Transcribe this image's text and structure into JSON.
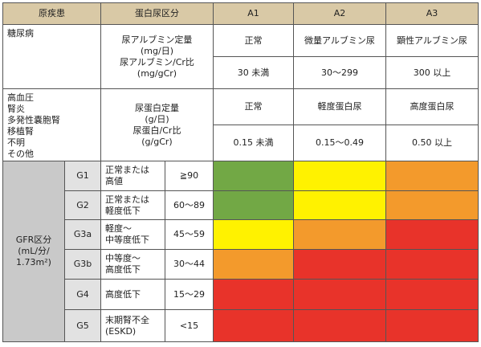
{
  "header": {
    "disease": "原疾患",
    "proteinuria": "蛋白尿区分",
    "stages": [
      "A1",
      "A2",
      "A3"
    ]
  },
  "diabetes": {
    "disease": [
      "糖尿病"
    ],
    "measure": [
      "尿アルブミン定量",
      "(mg/日)",
      "尿アルブミン/Cr比",
      "(mg/gCr)"
    ],
    "levels": [
      "正常",
      "微量アルブミン尿",
      "顕性アルブミン尿"
    ],
    "ranges": [
      "30 未満",
      "30～299",
      "300 以上"
    ]
  },
  "other": {
    "disease": [
      "高血圧",
      "腎炎",
      "多発性嚢胞腎",
      "移植腎",
      "不明",
      "その他"
    ],
    "measure": [
      "尿蛋白定量",
      "(g/日)",
      "尿蛋白/Cr比",
      "(g/gCr)"
    ],
    "levels": [
      "正常",
      "軽度蛋白尿",
      "高度蛋白尿"
    ],
    "ranges": [
      "0.15 未満",
      "0.15～0.49",
      "0.50 以上"
    ]
  },
  "gfr": {
    "label": [
      "GFR区分",
      "(mL/分/",
      "1.73m²)"
    ],
    "rows": [
      {
        "grade": "G1",
        "description": [
          "正常または",
          "高値"
        ],
        "range": "≧90",
        "colors": [
          "#72a845",
          "#fff200",
          "#f39a2c"
        ]
      },
      {
        "grade": "G2",
        "description": [
          "正常または",
          "軽度低下"
        ],
        "range": "60～89",
        "colors": [
          "#72a845",
          "#fff200",
          "#f39a2c"
        ]
      },
      {
        "grade": "G3a",
        "description": [
          "軽度～",
          "中等度低下"
        ],
        "range": "45～59",
        "colors": [
          "#fff200",
          "#f39a2c",
          "#e8332a"
        ]
      },
      {
        "grade": "G3b",
        "description": [
          "中等度～",
          "高度低下"
        ],
        "range": "30～44",
        "colors": [
          "#f39a2c",
          "#e8332a",
          "#e8332a"
        ]
      },
      {
        "grade": "G4",
        "description": [
          "高度低下"
        ],
        "range": "15～29",
        "colors": [
          "#e8332a",
          "#e8332a",
          "#e8332a"
        ]
      },
      {
        "grade": "G5",
        "description": [
          "末期腎不全",
          "(ESKD)"
        ],
        "range": "<15",
        "colors": [
          "#e8332a",
          "#e8332a",
          "#e8332a"
        ]
      }
    ]
  }
}
